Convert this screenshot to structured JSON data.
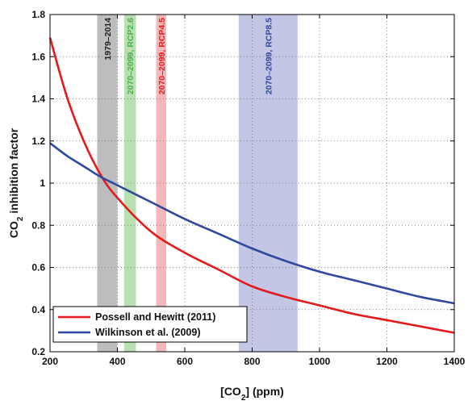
{
  "chart_data": {
    "type": "line",
    "xlabel": "[CO2] (ppm)",
    "ylabel": "CO2 inhibition factor",
    "xlim": [
      200,
      1400
    ],
    "ylim": [
      0.2,
      1.8
    ],
    "xticks": [
      "200",
      "400",
      "600",
      "800",
      "1000",
      "1200",
      "1400"
    ],
    "yticks": [
      "0.2",
      "0.4",
      "0.6",
      "0.8",
      "1",
      "1.2",
      "1.4",
      "1.6",
      "1.8"
    ],
    "grid": true,
    "legend_position": "bottom-left",
    "series": [
      {
        "name": "Possell and Hewitt (2011)",
        "color": "#e31a1c",
        "x": [
          200,
          250,
          300,
          350,
          400,
          500,
          600,
          700,
          800,
          900,
          1000,
          1100,
          1200,
          1300,
          1400
        ],
        "values": [
          1.69,
          1.41,
          1.2,
          1.04,
          0.93,
          0.77,
          0.67,
          0.59,
          0.51,
          0.46,
          0.42,
          0.38,
          0.35,
          0.32,
          0.29
        ]
      },
      {
        "name": "Wilkinson et al. (2009)",
        "color": "#2f48a0",
        "x": [
          200,
          250,
          300,
          350,
          400,
          500,
          600,
          700,
          800,
          900,
          1000,
          1100,
          1200,
          1300,
          1400
        ],
        "values": [
          1.19,
          1.13,
          1.08,
          1.03,
          0.99,
          0.91,
          0.83,
          0.76,
          0.69,
          0.63,
          0.58,
          0.54,
          0.5,
          0.46,
          0.43
        ]
      }
    ],
    "bands": [
      {
        "label": "1979–2014",
        "x0": 340,
        "x1": 400,
        "fill": "#bdbdbd",
        "text_color": "#222222"
      },
      {
        "label": "2070–2099, RCP2.6",
        "x0": 420,
        "x1": 455,
        "fill": "#b8e0b0",
        "text_color": "#4daf4a"
      },
      {
        "label": "2070–2099, RCP4.5",
        "x0": 515,
        "x1": 545,
        "fill": "#f4b8b8",
        "text_color": "#e31a1c"
      },
      {
        "label": "2070–2099, RCP8.5",
        "x0": 760,
        "x1": 935,
        "fill": "#c4c6e6",
        "text_color": "#2f48a0"
      }
    ]
  }
}
